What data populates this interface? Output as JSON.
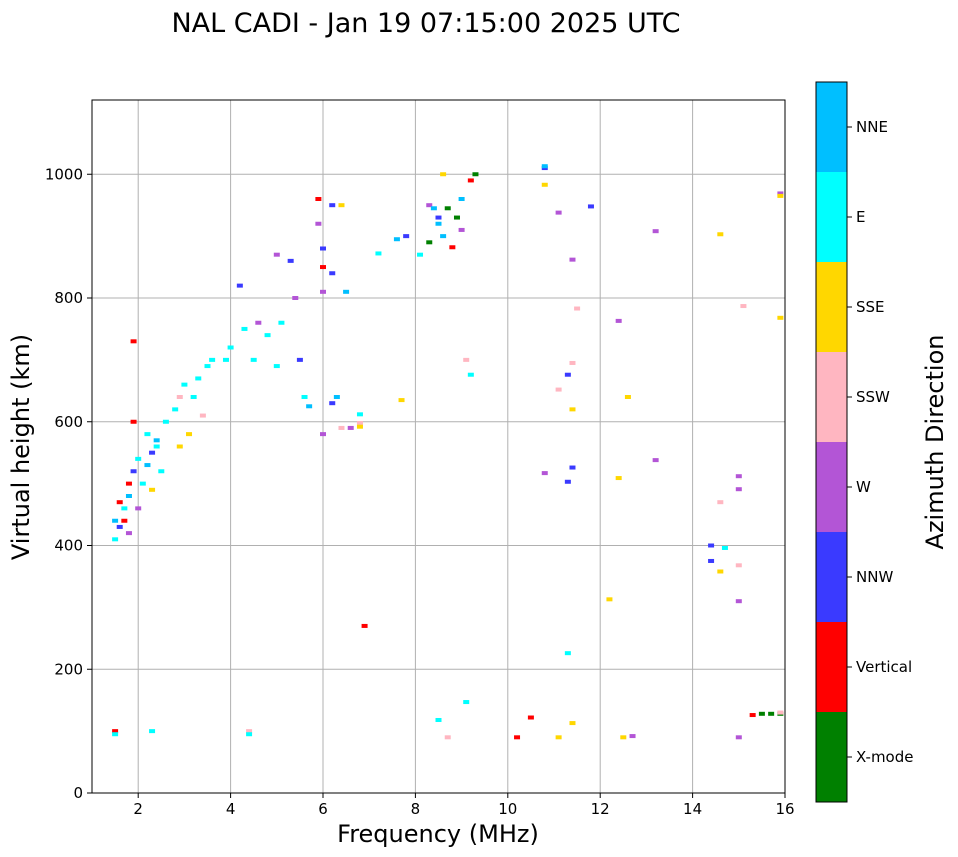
{
  "chart_data": {
    "type": "scatter",
    "title": "NAL CADI - Jan 19 07:15:00 2025 UTC",
    "xlabel": "Frequency (MHz)",
    "ylabel": "Virtual height (km)",
    "xlim": [
      1,
      16
    ],
    "ylim": [
      0,
      1120
    ],
    "xticks": [
      2,
      4,
      6,
      8,
      10,
      12,
      14,
      16
    ],
    "yticks": [
      0,
      200,
      400,
      600,
      800,
      1000
    ],
    "grid": true,
    "colorbar": {
      "label": "Azimuth Direction",
      "categories": [
        {
          "name": "X-mode",
          "color": "#008000"
        },
        {
          "name": "Vertical",
          "color": "#ff0000"
        },
        {
          "name": "NNW",
          "color": "#3a3aff"
        },
        {
          "name": "W",
          "color": "#b355d6"
        },
        {
          "name": "SSW",
          "color": "#ffb6c1"
        },
        {
          "name": "SSE",
          "color": "#ffd700"
        },
        {
          "name": "E",
          "color": "#00ffff"
        },
        {
          "name": "NNE",
          "color": "#00bfff"
        }
      ]
    },
    "series": [
      {
        "name": "X-mode",
        "points": [
          [
            15.5,
            128
          ],
          [
            15.7,
            128
          ],
          [
            15.9,
            128
          ],
          [
            9.3,
            1000
          ],
          [
            8.9,
            930
          ],
          [
            8.7,
            945
          ],
          [
            8.3,
            890
          ]
        ]
      },
      {
        "name": "Vertical",
        "points": [
          [
            1.5,
            100
          ],
          [
            6.9,
            270
          ],
          [
            9.2,
            990
          ],
          [
            8.8,
            882
          ],
          [
            10.2,
            90
          ],
          [
            10.5,
            122
          ],
          [
            15.3,
            126
          ],
          [
            6.0,
            850
          ],
          [
            5.9,
            960
          ],
          [
            1.9,
            730
          ],
          [
            1.9,
            600
          ],
          [
            1.8,
            500
          ],
          [
            1.6,
            470
          ],
          [
            1.7,
            440
          ]
        ]
      },
      {
        "name": "NNW",
        "points": [
          [
            4.2,
            820
          ],
          [
            5.3,
            860
          ],
          [
            6.2,
            840
          ],
          [
            6.0,
            880
          ],
          [
            6.2,
            950
          ],
          [
            8.5,
            930
          ],
          [
            7.8,
            900
          ],
          [
            10.8,
            1010
          ],
          [
            11.4,
            526
          ],
          [
            11.3,
            503
          ],
          [
            11.3,
            676
          ],
          [
            11.8,
            948
          ],
          [
            14.4,
            400
          ],
          [
            14.4,
            375
          ],
          [
            5.5,
            700
          ],
          [
            6.2,
            630
          ],
          [
            1.6,
            430
          ],
          [
            1.9,
            520
          ],
          [
            2.3,
            550
          ]
        ]
      },
      {
        "name": "W",
        "points": [
          [
            5.0,
            870
          ],
          [
            5.4,
            800
          ],
          [
            6.0,
            810
          ],
          [
            5.9,
            920
          ],
          [
            6.6,
            590
          ],
          [
            6.0,
            580
          ],
          [
            11.1,
            938
          ],
          [
            13.2,
            908
          ],
          [
            13.2,
            538
          ],
          [
            15.0,
            512
          ],
          [
            15.0,
            491
          ],
          [
            15.0,
            310
          ],
          [
            15.0,
            90
          ],
          [
            12.7,
            92
          ],
          [
            12.4,
            763
          ],
          [
            15.9,
            969
          ],
          [
            10.8,
            517
          ],
          [
            11.4,
            862
          ],
          [
            9.0,
            910
          ],
          [
            8.3,
            950
          ],
          [
            4.6,
            760
          ],
          [
            2.0,
            460
          ],
          [
            1.8,
            420
          ]
        ]
      },
      {
        "name": "SSW",
        "points": [
          [
            4.4,
            100
          ],
          [
            6.4,
            590
          ],
          [
            9.1,
            700
          ],
          [
            8.7,
            90
          ],
          [
            11.5,
            783
          ],
          [
            11.4,
            695
          ],
          [
            11.1,
            652
          ],
          [
            14.6,
            470
          ],
          [
            15.0,
            368
          ],
          [
            15.1,
            787
          ],
          [
            15.9,
            130
          ],
          [
            2.9,
            640
          ],
          [
            3.4,
            610
          ],
          [
            6.8,
            598
          ]
        ]
      },
      {
        "name": "SSE",
        "points": [
          [
            10.8,
            983
          ],
          [
            12.4,
            509
          ],
          [
            12.2,
            313
          ],
          [
            12.6,
            640
          ],
          [
            12.5,
            90
          ],
          [
            14.6,
            903
          ],
          [
            14.6,
            358
          ],
          [
            11.4,
            620
          ],
          [
            11.4,
            113
          ],
          [
            11.1,
            90
          ],
          [
            7.7,
            635
          ],
          [
            6.8,
            592
          ],
          [
            15.9,
            768
          ],
          [
            15.9,
            965
          ],
          [
            2.3,
            490
          ],
          [
            2.9,
            560
          ],
          [
            3.1,
            580
          ],
          [
            8.6,
            1000
          ],
          [
            6.4,
            950
          ]
        ]
      },
      {
        "name": "E",
        "points": [
          [
            1.5,
            95
          ],
          [
            2.3,
            100
          ],
          [
            4.4,
            95
          ],
          [
            2.0,
            540
          ],
          [
            2.4,
            560
          ],
          [
            3.0,
            660
          ],
          [
            3.5,
            690
          ],
          [
            4.0,
            720
          ],
          [
            4.8,
            740
          ],
          [
            5.1,
            760
          ],
          [
            2.2,
            580
          ],
          [
            2.6,
            600
          ],
          [
            3.2,
            640
          ],
          [
            3.6,
            700
          ],
          [
            4.3,
            750
          ],
          [
            5.6,
            640
          ],
          [
            6.8,
            612
          ],
          [
            8.5,
            118
          ],
          [
            9.1,
            147
          ],
          [
            9.2,
            676
          ],
          [
            11.3,
            226
          ],
          [
            14.7,
            396
          ],
          [
            8.1,
            870
          ],
          [
            7.2,
            872
          ],
          [
            1.5,
            410
          ],
          [
            1.7,
            460
          ],
          [
            2.1,
            500
          ],
          [
            2.5,
            520
          ],
          [
            2.8,
            620
          ],
          [
            3.3,
            670
          ],
          [
            3.9,
            700
          ],
          [
            4.5,
            700
          ],
          [
            5.0,
            690
          ]
        ]
      },
      {
        "name": "NNE",
        "points": [
          [
            10.8,
            1013
          ],
          [
            8.5,
            920
          ],
          [
            8.4,
            945
          ],
          [
            8.6,
            900
          ],
          [
            9.0,
            960
          ],
          [
            6.5,
            810
          ],
          [
            5.7,
            625
          ],
          [
            6.3,
            640
          ],
          [
            7.6,
            895
          ],
          [
            1.5,
            440
          ],
          [
            1.8,
            480
          ],
          [
            2.2,
            530
          ],
          [
            2.4,
            570
          ]
        ]
      }
    ]
  }
}
